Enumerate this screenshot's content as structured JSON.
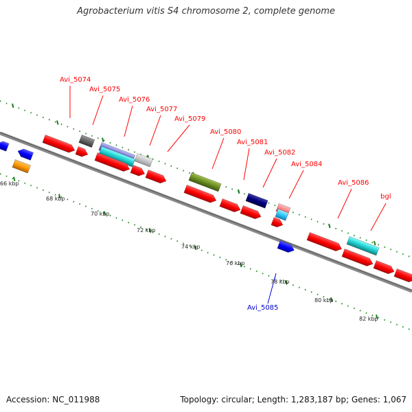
{
  "title": "Agrobacterium vitis S4 chromosome 2, complete genome",
  "footer": {
    "accession": "Accession: NC_011988",
    "summary": "Topology: circular; Length: 1,283,187 bp; Genes: 1,067"
  },
  "colors": {
    "forward_gene": "#ff0000",
    "reverse_gene": "#0000ff",
    "forward_label": "#ff0000",
    "reverse_label": "#0000cc",
    "backbone": "#777777",
    "tick": "#2e8b2e"
  },
  "scale_labels": [
    "66 kbp",
    "68 kbp",
    "70 kbp",
    "72 kbp",
    "74 kbp",
    "76 kbp",
    "78 kbp",
    "80 kbp",
    "82 kbp"
  ],
  "gene_labels": [
    {
      "text": "Avi_5074",
      "strand": "forward"
    },
    {
      "text": "Avi_5075",
      "strand": "forward"
    },
    {
      "text": "Avi_5076",
      "strand": "forward"
    },
    {
      "text": "Avi_5077",
      "strand": "forward"
    },
    {
      "text": "Avi_5079",
      "strand": "forward"
    },
    {
      "text": "Avi_5080",
      "strand": "forward"
    },
    {
      "text": "Avi_5081",
      "strand": "forward"
    },
    {
      "text": "Avi_5082",
      "strand": "forward"
    },
    {
      "text": "Avi_5084",
      "strand": "forward"
    },
    {
      "text": "Avi_5086",
      "strand": "forward"
    },
    {
      "text": "bgl",
      "strand": "forward"
    },
    {
      "text": "Avi_5085",
      "strand": "reverse"
    }
  ]
}
